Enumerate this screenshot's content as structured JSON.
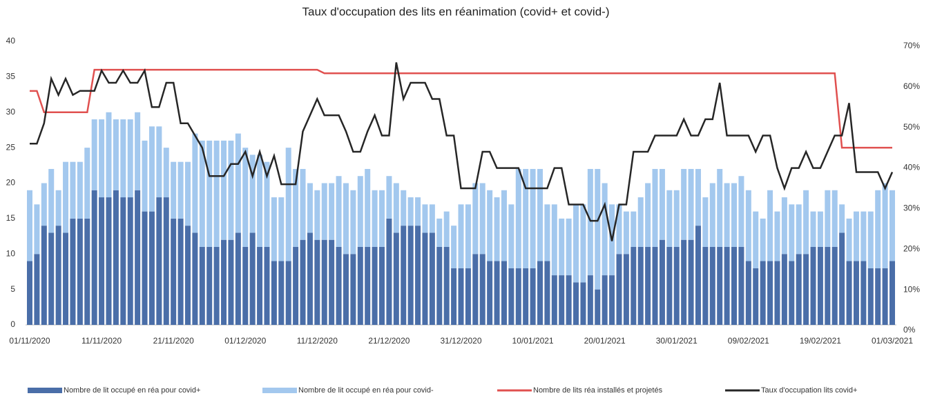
{
  "chart_data": {
    "type": "bar",
    "title": "Taux d'occupation des lits en réanimation (covid+ et covid-)",
    "categories": [
      "01/11/2020",
      null,
      null,
      null,
      null,
      null,
      null,
      null,
      null,
      null,
      "11/11/2020",
      null,
      null,
      null,
      null,
      null,
      null,
      null,
      null,
      null,
      "21/11/2020",
      null,
      null,
      null,
      null,
      null,
      null,
      null,
      null,
      null,
      "01/12/2020",
      null,
      null,
      null,
      null,
      null,
      null,
      null,
      null,
      null,
      "11/12/2020",
      null,
      null,
      null,
      null,
      null,
      null,
      null,
      null,
      null,
      "21/12/2020",
      null,
      null,
      null,
      null,
      null,
      null,
      null,
      null,
      null,
      "31/12/2020",
      null,
      null,
      null,
      null,
      null,
      null,
      null,
      null,
      null,
      "10/01/2021",
      null,
      null,
      null,
      null,
      null,
      null,
      null,
      null,
      null,
      "20/01/2021",
      null,
      null,
      null,
      null,
      null,
      null,
      null,
      null,
      null,
      "30/01/2021",
      null,
      null,
      null,
      null,
      null,
      null,
      null,
      null,
      null,
      "09/02/2021",
      null,
      null,
      null,
      null,
      null,
      null,
      null,
      null,
      null,
      "19/02/2021",
      null,
      null,
      null,
      null,
      null,
      null,
      null,
      null,
      null,
      "01/03/2021"
    ],
    "ylim": [
      0,
      40
    ],
    "yticks": [
      0,
      5,
      10,
      15,
      20,
      25,
      30,
      35,
      40
    ],
    "y2lim": [
      0,
      70
    ],
    "y2ticks": [
      {
        "value": 0,
        "label": "0%"
      },
      {
        "value": 10,
        "label": "10%"
      },
      {
        "value": 20,
        "label": "20%"
      },
      {
        "value": 30,
        "label": "30%"
      },
      {
        "value": 40,
        "label": "40%"
      },
      {
        "value": 50,
        "label": "50%"
      },
      {
        "value": 60,
        "label": "60%"
      },
      {
        "value": 70,
        "label": "70%"
      }
    ],
    "legend": "bottom",
    "series": [
      {
        "name": "Nombre de lit occupé en réa pour covid+",
        "type": "bar",
        "stack": true,
        "color": "#4a6ea8",
        "values": [
          9,
          10,
          14,
          13,
          14,
          13,
          15,
          15,
          15,
          19,
          18,
          18,
          19,
          18,
          18,
          19,
          16,
          16,
          18,
          18,
          15,
          15,
          14,
          13,
          11,
          11,
          11,
          12,
          12,
          13,
          11,
          13,
          11,
          11,
          9,
          9,
          9,
          11,
          12,
          13,
          12,
          12,
          12,
          11,
          10,
          10,
          11,
          11,
          11,
          11,
          15,
          13,
          14,
          14,
          14,
          13,
          13,
          11,
          11,
          8,
          8,
          8,
          10,
          10,
          9,
          9,
          9,
          8,
          8,
          8,
          8,
          9,
          9,
          7,
          7,
          7,
          6,
          6,
          7,
          5,
          7,
          7,
          10,
          10,
          11,
          11,
          11,
          11,
          12,
          11,
          11,
          12,
          12,
          14,
          11,
          11,
          11,
          11,
          11,
          11,
          9,
          8,
          9,
          9,
          9,
          10,
          9,
          10,
          10,
          11,
          11,
          11,
          11,
          13,
          9,
          9,
          9,
          8,
          8,
          8,
          9
        ]
      },
      {
        "name": "Nombre de lit occupé en réa pour covid-",
        "type": "bar",
        "stack": true,
        "color": "#a3c8ee",
        "values": [
          10,
          7,
          6,
          9,
          5,
          10,
          8,
          8,
          10,
          10,
          11,
          12,
          10,
          11,
          11,
          11,
          10,
          12,
          10,
          7,
          8,
          8,
          9,
          14,
          15,
          15,
          15,
          14,
          14,
          14,
          14,
          11,
          13,
          12,
          9,
          9,
          16,
          11,
          10,
          7,
          7,
          8,
          8,
          10,
          10,
          9,
          10,
          11,
          8,
          8,
          6,
          7,
          5,
          4,
          4,
          4,
          4,
          4,
          5,
          6,
          9,
          9,
          10,
          10,
          10,
          9,
          10,
          9,
          14,
          14,
          14,
          13,
          8,
          10,
          8,
          8,
          11,
          11,
          15,
          17,
          13,
          10,
          7,
          6,
          5,
          7,
          9,
          11,
          10,
          8,
          8,
          10,
          10,
          8,
          7,
          9,
          11,
          9,
          9,
          10,
          10,
          8,
          6,
          10,
          7,
          8,
          8,
          7,
          9,
          5,
          5,
          8,
          8,
          4,
          6,
          7,
          7,
          8,
          11,
          12,
          10
        ]
      },
      {
        "name": "Nombre de lits réa installés et projetés",
        "type": "line",
        "color": "#e0504f",
        "values": [
          33,
          33,
          30,
          30,
          30,
          30,
          30,
          30,
          30,
          36,
          36,
          36,
          36,
          36,
          36,
          36,
          36,
          36,
          36,
          36,
          36,
          36,
          36,
          36,
          36,
          36,
          36,
          36,
          36,
          36,
          36,
          36,
          36,
          36,
          36,
          36,
          36,
          36,
          36,
          36,
          36,
          35.5,
          35.5,
          35.5,
          35.5,
          35.5,
          35.5,
          35.5,
          35.5,
          35.5,
          35.5,
          35.5,
          35.5,
          35.5,
          35.5,
          35.5,
          35.5,
          35.5,
          35.5,
          35.5,
          35.5,
          35.5,
          35.5,
          35.5,
          35.5,
          35.5,
          35.5,
          35.5,
          35.5,
          35.5,
          35.5,
          35.5,
          35.5,
          35.5,
          35.5,
          35.5,
          35.5,
          35.5,
          35.5,
          35.5,
          35.5,
          35.5,
          35.5,
          35.5,
          35.5,
          35.5,
          35.5,
          35.5,
          35.5,
          35.5,
          35.5,
          35.5,
          35.5,
          35.5,
          35.5,
          35.5,
          35.5,
          35.5,
          35.5,
          35.5,
          35.5,
          35.5,
          35.5,
          35.5,
          35.5,
          35.5,
          35.5,
          35.5,
          35.5,
          35.5,
          35.5,
          35.5,
          35.5,
          25,
          25,
          25,
          25,
          25,
          25,
          25,
          25
        ]
      },
      {
        "name": "Taux d'occupation lits covid+",
        "type": "line",
        "axis": "y2",
        "color": "#262626",
        "values": [
          46,
          46,
          51,
          62,
          58,
          62,
          58,
          59,
          59,
          59,
          64,
          61,
          61,
          64,
          61,
          61,
          64,
          55,
          55,
          61,
          61,
          51,
          51,
          48,
          45,
          38,
          38,
          38,
          41,
          41,
          44,
          38,
          44,
          38,
          43,
          36,
          36,
          36,
          49,
          53,
          57,
          53,
          53,
          53,
          49,
          44,
          44,
          49,
          53,
          48,
          48,
          66,
          57,
          61,
          61,
          61,
          57,
          57,
          48,
          48,
          35,
          35,
          35,
          44,
          44,
          40,
          40,
          40,
          40,
          35,
          35,
          35,
          35,
          40,
          40,
          31,
          31,
          31,
          27,
          27,
          31,
          22,
          31,
          31,
          44,
          44,
          44,
          48,
          48,
          48,
          48,
          52,
          48,
          48,
          52,
          52,
          61,
          48,
          48,
          48,
          48,
          44,
          48,
          48,
          40,
          35,
          40,
          40,
          44,
          40,
          40,
          44,
          48,
          48,
          56,
          39,
          39,
          39,
          39,
          35,
          39
        ]
      }
    ]
  }
}
